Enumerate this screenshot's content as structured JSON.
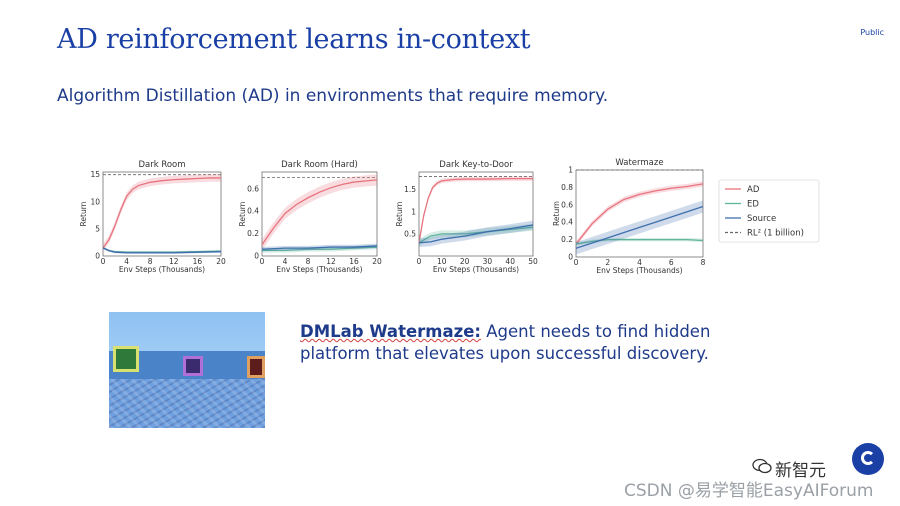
{
  "header": {
    "title": "AD reinforcement learns in-context",
    "badge": "Public",
    "subtitle": "Algorithm Distillation (AD) in environments that require memory."
  },
  "description": {
    "highlight": "DMLab Watermaze:",
    "text": " Agent needs to find hidden platform that elevates upon successful discovery."
  },
  "watermark": {
    "brand": "新智元",
    "credit": "CSDN @易学智能EasyAIForum"
  },
  "colors": {
    "title": "#1a40a6",
    "AD": "#e8737f",
    "ED": "#5fb59a",
    "Source": "#3f6fae",
    "RL2": "#666666"
  },
  "legend": [
    {
      "key": "AD",
      "label": "AD",
      "style": "solid"
    },
    {
      "key": "ED",
      "label": "ED",
      "style": "solid"
    },
    {
      "key": "Source",
      "label": "Source",
      "style": "solid"
    },
    {
      "key": "RL2",
      "label": "RL² (1 billion)",
      "style": "dashed"
    }
  ],
  "chart_data": [
    {
      "type": "line",
      "title": "Dark Room",
      "xlabel": "Env Steps (Thousands)",
      "ylabel": "Return",
      "xlim": [
        0,
        20
      ],
      "ylim": [
        0,
        15.5
      ],
      "xticks": [
        0,
        4,
        8,
        12,
        16,
        20
      ],
      "yticks": [
        0,
        5,
        10,
        15
      ],
      "rl2": 15,
      "series": [
        {
          "name": "AD",
          "x": [
            0,
            1,
            2,
            3,
            4,
            5,
            6,
            8,
            10,
            12,
            14,
            16,
            18,
            20
          ],
          "y": [
            1.5,
            3.0,
            5.5,
            8.5,
            11,
            12.3,
            13.0,
            13.6,
            13.9,
            14.1,
            14.2,
            14.3,
            14.4,
            14.4
          ],
          "band": 0.7
        },
        {
          "name": "ED",
          "x": [
            0,
            1,
            2,
            4,
            8,
            12,
            16,
            20
          ],
          "y": [
            1.5,
            1.0,
            0.8,
            0.7,
            0.7,
            0.7,
            0.8,
            0.9
          ],
          "band": 0.2
        },
        {
          "name": "Source",
          "x": [
            0,
            1,
            2,
            4,
            8,
            12,
            16,
            20
          ],
          "y": [
            1.5,
            1.0,
            0.7,
            0.6,
            0.6,
            0.6,
            0.7,
            0.8
          ],
          "band": 0.2
        }
      ]
    },
    {
      "type": "line",
      "title": "Dark Room (Hard)",
      "xlabel": "Env Steps (Thousands)",
      "ylabel": "Return",
      "xlim": [
        0,
        20
      ],
      "ylim": [
        0,
        0.75
      ],
      "xticks": [
        0,
        4,
        8,
        12,
        16,
        20
      ],
      "yticks": [
        0.0,
        0.2,
        0.4,
        0.6
      ],
      "rl2": 0.7,
      "series": [
        {
          "name": "AD",
          "x": [
            0,
            2,
            4,
            6,
            8,
            10,
            12,
            14,
            16,
            18,
            20
          ],
          "y": [
            0.1,
            0.25,
            0.38,
            0.46,
            0.52,
            0.57,
            0.61,
            0.64,
            0.66,
            0.67,
            0.68
          ],
          "band": 0.05
        },
        {
          "name": "ED",
          "x": [
            0,
            4,
            8,
            12,
            16,
            20
          ],
          "y": [
            0.05,
            0.05,
            0.06,
            0.06,
            0.07,
            0.08
          ],
          "band": 0.02
        },
        {
          "name": "Source",
          "x": [
            0,
            4,
            8,
            12,
            16,
            20
          ],
          "y": [
            0.06,
            0.07,
            0.07,
            0.08,
            0.08,
            0.09
          ],
          "band": 0.02
        }
      ]
    },
    {
      "type": "line",
      "title": "Dark Key-to-Door",
      "xlabel": "Env Steps (Thousands)",
      "ylabel": "Return",
      "xlim": [
        0,
        50
      ],
      "ylim": [
        0,
        1.9
      ],
      "xticks": [
        0,
        10,
        20,
        30,
        40,
        50
      ],
      "yticks": [
        0.5,
        1.0,
        1.5
      ],
      "rl2": 1.8,
      "series": [
        {
          "name": "AD",
          "x": [
            0,
            2,
            4,
            6,
            8,
            10,
            15,
            20,
            30,
            40,
            50
          ],
          "y": [
            0.3,
            0.9,
            1.3,
            1.55,
            1.65,
            1.7,
            1.73,
            1.74,
            1.74,
            1.75,
            1.75
          ],
          "band": 0.05
        },
        {
          "name": "ED",
          "x": [
            0,
            5,
            10,
            20,
            30,
            40,
            50
          ],
          "y": [
            0.3,
            0.45,
            0.5,
            0.5,
            0.55,
            0.6,
            0.65
          ],
          "band": 0.08
        },
        {
          "name": "Source",
          "x": [
            0,
            5,
            10,
            20,
            30,
            40,
            50
          ],
          "y": [
            0.3,
            0.32,
            0.38,
            0.45,
            0.55,
            0.62,
            0.7
          ],
          "band": 0.1
        }
      ]
    },
    {
      "type": "line",
      "title": "Watermaze",
      "xlabel": "Env Steps (Thousands)",
      "ylabel": "Return",
      "xlim": [
        0,
        8
      ],
      "ylim": [
        0,
        1.0
      ],
      "xticks": [
        0,
        2,
        4,
        6,
        8
      ],
      "yticks": [
        0.0,
        0.2,
        0.4,
        0.6,
        0.8,
        1.0
      ],
      "rl2": 1.0,
      "series": [
        {
          "name": "AD",
          "x": [
            0,
            1,
            2,
            3,
            4,
            5,
            6,
            7,
            8
          ],
          "y": [
            0.15,
            0.38,
            0.55,
            0.66,
            0.72,
            0.76,
            0.79,
            0.81,
            0.84
          ],
          "band": 0.03
        },
        {
          "name": "ED",
          "x": [
            0,
            1,
            2,
            3,
            4,
            5,
            6,
            7,
            8
          ],
          "y": [
            0.15,
            0.18,
            0.2,
            0.2,
            0.2,
            0.2,
            0.2,
            0.2,
            0.19
          ],
          "band": 0.02
        },
        {
          "name": "Source",
          "x": [
            0,
            1,
            2,
            3,
            4,
            5,
            6,
            7,
            8
          ],
          "y": [
            0.1,
            0.16,
            0.22,
            0.28,
            0.34,
            0.4,
            0.46,
            0.52,
            0.58
          ],
          "band": 0.07
        }
      ]
    }
  ]
}
